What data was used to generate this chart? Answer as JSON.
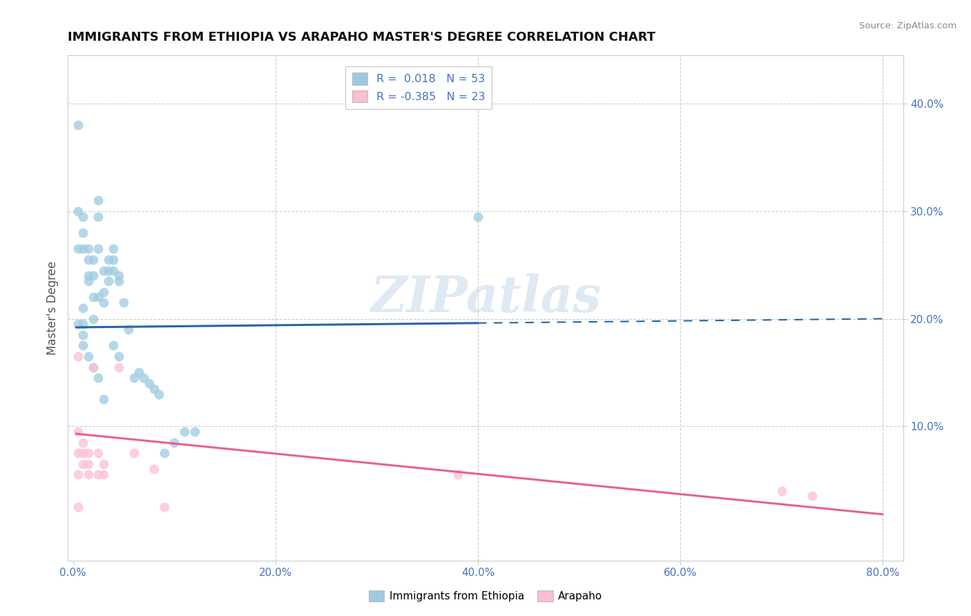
{
  "title": "IMMIGRANTS FROM ETHIOPIA VS ARAPAHO MASTER'S DEGREE CORRELATION CHART",
  "source_text": "Source: ZipAtlas.com",
  "ylabel": "Master's Degree",
  "xlabel_ticks": [
    "0.0%",
    "20.0%",
    "40.0%",
    "60.0%",
    "80.0%"
  ],
  "xlabel_vals": [
    0.0,
    0.2,
    0.4,
    0.6,
    0.8
  ],
  "ylabel_ticks": [
    "10.0%",
    "20.0%",
    "30.0%",
    "40.0%"
  ],
  "ylabel_vals": [
    0.1,
    0.2,
    0.3,
    0.4
  ],
  "xlim": [
    -0.005,
    0.82
  ],
  "ylim": [
    -0.025,
    0.445
  ],
  "watermark": "ZIPatlas",
  "legend_label1": "Immigrants from Ethiopia",
  "legend_label2": "Arapaho",
  "R1": 0.018,
  "N1": 53,
  "R2": -0.385,
  "N2": 23,
  "blue_color": "#9ecae1",
  "pink_color": "#fcbfd2",
  "blue_line_color": "#2166ac",
  "pink_line_color": "#e8628a",
  "blue_x": [
    0.005,
    0.005,
    0.005,
    0.005,
    0.01,
    0.01,
    0.01,
    0.01,
    0.01,
    0.01,
    0.015,
    0.015,
    0.015,
    0.015,
    0.02,
    0.02,
    0.02,
    0.02,
    0.025,
    0.025,
    0.025,
    0.025,
    0.03,
    0.03,
    0.03,
    0.035,
    0.035,
    0.035,
    0.04,
    0.04,
    0.04,
    0.04,
    0.045,
    0.045,
    0.045,
    0.05,
    0.055,
    0.06,
    0.065,
    0.07,
    0.075,
    0.08,
    0.085,
    0.09,
    0.1,
    0.11,
    0.12,
    0.4,
    0.01,
    0.015,
    0.02,
    0.025,
    0.03
  ],
  "blue_y": [
    0.38,
    0.3,
    0.265,
    0.195,
    0.295,
    0.28,
    0.265,
    0.21,
    0.195,
    0.185,
    0.265,
    0.255,
    0.24,
    0.235,
    0.255,
    0.24,
    0.22,
    0.2,
    0.31,
    0.295,
    0.265,
    0.22,
    0.245,
    0.225,
    0.215,
    0.255,
    0.245,
    0.235,
    0.265,
    0.255,
    0.245,
    0.175,
    0.24,
    0.235,
    0.165,
    0.215,
    0.19,
    0.145,
    0.15,
    0.145,
    0.14,
    0.135,
    0.13,
    0.075,
    0.085,
    0.095,
    0.095,
    0.295,
    0.175,
    0.165,
    0.155,
    0.145,
    0.125
  ],
  "pink_x": [
    0.005,
    0.005,
    0.005,
    0.005,
    0.005,
    0.01,
    0.01,
    0.01,
    0.015,
    0.015,
    0.015,
    0.02,
    0.025,
    0.025,
    0.03,
    0.03,
    0.045,
    0.06,
    0.08,
    0.09,
    0.38,
    0.7,
    0.73
  ],
  "pink_y": [
    0.165,
    0.095,
    0.075,
    0.055,
    0.025,
    0.085,
    0.075,
    0.065,
    0.075,
    0.065,
    0.055,
    0.155,
    0.075,
    0.055,
    0.065,
    0.055,
    0.155,
    0.075,
    0.06,
    0.025,
    0.055,
    0.04,
    0.035
  ],
  "background_color": "#ffffff",
  "grid_color": "#cccccc",
  "blue_line_x0": 0.003,
  "blue_line_x1": 0.4,
  "blue_line_x_dash_end": 0.8,
  "blue_line_y0": 0.192,
  "blue_line_y1": 0.196,
  "pink_line_x0": 0.003,
  "pink_line_x1": 0.8,
  "pink_line_y0": 0.093,
  "pink_line_y1": 0.018
}
